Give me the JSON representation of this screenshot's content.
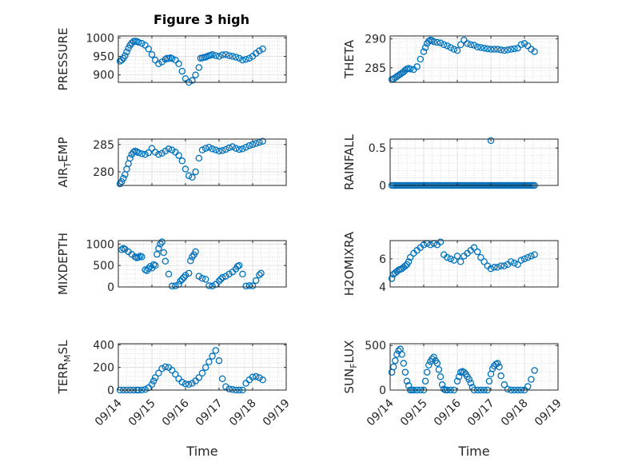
{
  "figure_title": "Figure 3 high",
  "colors": {
    "marker": "#0072BD",
    "axis": "#262626",
    "grid": "#c8c8c8"
  },
  "chart_data": [
    {
      "type": "scatter",
      "ylabel": "PRESSURE",
      "title": "Figure 3 high",
      "xlabel": "",
      "xlim": [
        "09/14",
        "09/19"
      ],
      "ylim": [
        880,
        1005
      ],
      "yticks": [
        900,
        950,
        1000
      ],
      "xticks": [
        "09/14",
        "09/15",
        "09/16",
        "09/17",
        "09/18",
        "09/19"
      ],
      "show_xticklabels": false,
      "grid": "on",
      "series": [
        {
          "x": [
            0.05,
            0.1,
            0.15,
            0.2,
            0.25,
            0.3,
            0.35,
            0.4,
            0.45,
            0.5,
            0.55,
            0.6,
            0.7,
            0.8,
            0.9,
            1.0,
            1.1,
            1.2,
            1.3,
            1.4,
            1.45,
            1.5,
            1.55,
            1.6,
            1.7,
            1.8,
            1.9,
            2.0,
            2.1,
            2.2,
            2.3,
            2.4,
            2.45,
            2.5,
            2.55,
            2.6,
            2.65,
            2.7,
            2.75,
            2.8,
            2.9,
            3.0,
            3.1,
            3.2,
            3.3,
            3.4,
            3.5,
            3.6,
            3.7,
            3.8,
            3.9,
            4.0,
            4.1,
            4.2,
            4.3
          ],
          "y": [
            937,
            940,
            945,
            952,
            962,
            972,
            980,
            986,
            990,
            991,
            990,
            988,
            985,
            980,
            970,
            955,
            940,
            930,
            935,
            942,
            945,
            944,
            946,
            944,
            940,
            930,
            910,
            890,
            880,
            885,
            900,
            920,
            945,
            946,
            947,
            948,
            950,
            952,
            953,
            955,
            952,
            950,
            954,
            955,
            952,
            950,
            948,
            945,
            940,
            942,
            945,
            950,
            958,
            965,
            970
          ]
        }
      ]
    },
    {
      "type": "scatter",
      "ylabel": "THETA",
      "xlabel": "",
      "xlim": [
        "09/14",
        "09/19"
      ],
      "ylim": [
        282.5,
        290.5
      ],
      "yticks": [
        285,
        290
      ],
      "xticks": [
        "09/14",
        "09/15",
        "09/16",
        "09/17",
        "09/18",
        "09/19"
      ],
      "show_xticklabels": false,
      "grid": "on",
      "series": [
        {
          "x": [
            0.05,
            0.1,
            0.15,
            0.2,
            0.25,
            0.3,
            0.35,
            0.4,
            0.45,
            0.5,
            0.55,
            0.6,
            0.7,
            0.8,
            0.9,
            1.0,
            1.05,
            1.1,
            1.15,
            1.2,
            1.25,
            1.3,
            1.4,
            1.5,
            1.6,
            1.7,
            1.8,
            1.9,
            2.0,
            2.1,
            2.2,
            2.3,
            2.4,
            2.5,
            2.6,
            2.7,
            2.8,
            2.9,
            3.0,
            3.1,
            3.2,
            3.3,
            3.4,
            3.5,
            3.6,
            3.7,
            3.8,
            3.9,
            4.0,
            4.1,
            4.2,
            4.3
          ],
          "y": [
            283,
            283.1,
            283.3,
            283.5,
            283.7,
            283.9,
            284.1,
            284.3,
            284.6,
            284.8,
            284.9,
            284.8,
            284.7,
            285.2,
            286.5,
            287.8,
            288.5,
            289.2,
            289.6,
            289.8,
            289.7,
            289.5,
            289.4,
            289.3,
            289.0,
            288.8,
            288.5,
            288.2,
            288.0,
            289.0,
            289.8,
            289.2,
            289.0,
            288.9,
            288.6,
            288.5,
            288.4,
            288.3,
            288.2,
            288.2,
            288.2,
            288.1,
            288.0,
            288.1,
            288.2,
            288.3,
            288.4,
            289.0,
            289.2,
            288.8,
            288.2,
            287.8
          ]
        }
      ]
    },
    {
      "type": "scatter",
      "ylabel": "AIR_TEMP",
      "xlabel": "",
      "xlim": [
        "09/14",
        "09/19"
      ],
      "ylim": [
        277.5,
        286
      ],
      "yticks": [
        280,
        285
      ],
      "xticks": [
        "09/14",
        "09/15",
        "09/16",
        "09/17",
        "09/18",
        "09/19"
      ],
      "show_xticklabels": false,
      "grid": "on",
      "series": [
        {
          "x": [
            0.05,
            0.1,
            0.15,
            0.2,
            0.25,
            0.3,
            0.35,
            0.4,
            0.45,
            0.5,
            0.55,
            0.6,
            0.7,
            0.8,
            0.9,
            1.0,
            1.1,
            1.2,
            1.3,
            1.4,
            1.5,
            1.6,
            1.7,
            1.8,
            1.9,
            2.0,
            2.1,
            2.2,
            2.3,
            2.4,
            2.5,
            2.6,
            2.7,
            2.8,
            2.9,
            3.0,
            3.1,
            3.2,
            3.3,
            3.4,
            3.5,
            3.6,
            3.7,
            3.8,
            3.9,
            4.0,
            4.1,
            4.2,
            4.3
          ],
          "y": [
            277.8,
            278.2,
            278.8,
            279.5,
            280.5,
            281.5,
            282.5,
            283.2,
            283.6,
            283.8,
            283.7,
            283.5,
            283.3,
            283.2,
            283.5,
            284.3,
            283.6,
            283.2,
            283.4,
            283.8,
            284.2,
            284.0,
            283.6,
            283.0,
            282.0,
            280.5,
            279.3,
            279.0,
            280.0,
            282.5,
            284.0,
            284.3,
            284.5,
            284.2,
            284.0,
            283.8,
            283.9,
            284.1,
            284.4,
            284.6,
            284.3,
            284.1,
            284.2,
            284.5,
            284.8,
            285.0,
            285.2,
            285.4,
            285.6
          ]
        }
      ]
    },
    {
      "type": "scatter",
      "ylabel": "RAINFALL",
      "xlabel": "",
      "xlim": [
        "09/14",
        "09/19"
      ],
      "ylim": [
        0,
        0.62
      ],
      "yticks": [
        0,
        0.5
      ],
      "xticks": [
        "09/14",
        "09/15",
        "09/16",
        "09/17",
        "09/18",
        "09/19"
      ],
      "show_xticklabels": false,
      "grid": "on",
      "series": [
        {
          "x_range": [
            0.05,
            4.3
          ],
          "constant": 0,
          "points": 90,
          "outliers": [
            {
              "x": 3.0,
              "y": 0.6
            }
          ]
        }
      ]
    },
    {
      "type": "scatter",
      "ylabel": "MIXDEPTH",
      "xlabel": "",
      "xlim": [
        "09/14",
        "09/19"
      ],
      "ylim": [
        0,
        1080
      ],
      "yticks": [
        0,
        500,
        1000
      ],
      "xticks": [
        "09/14",
        "09/15",
        "09/16",
        "09/17",
        "09/18",
        "09/19"
      ],
      "show_xticklabels": false,
      "grid": "on",
      "series": [
        {
          "x": [
            0.1,
            0.15,
            0.2,
            0.3,
            0.4,
            0.5,
            0.55,
            0.6,
            0.65,
            0.7,
            0.8,
            0.85,
            0.9,
            0.95,
            1.0,
            1.05,
            1.1,
            1.15,
            1.2,
            1.25,
            1.3,
            1.35,
            1.4,
            1.5,
            1.6,
            1.7,
            1.8,
            1.85,
            1.9,
            1.95,
            2.0,
            2.1,
            2.15,
            2.2,
            2.25,
            2.3,
            2.4,
            2.5,
            2.6,
            2.7,
            2.8,
            2.9,
            3.0,
            3.05,
            3.1,
            3.2,
            3.3,
            3.4,
            3.5,
            3.55,
            3.6,
            3.7,
            3.8,
            3.9,
            4.0,
            4.1,
            4.2,
            4.25
          ],
          "y": [
            870,
            900,
            880,
            820,
            760,
            700,
            680,
            690,
            720,
            700,
            400,
            380,
            430,
            480,
            440,
            520,
            500,
            760,
            900,
            1000,
            1050,
            800,
            600,
            300,
            20,
            25,
            60,
            140,
            180,
            220,
            270,
            320,
            610,
            700,
            750,
            820,
            250,
            200,
            180,
            30,
            20,
            60,
            140,
            180,
            220,
            250,
            300,
            350,
            420,
            480,
            500,
            300,
            20,
            30,
            25,
            150,
            280,
            320
          ]
        }
      ]
    },
    {
      "type": "scatter",
      "ylabel": "H2OMIXRA",
      "xlabel": "",
      "xlim": [
        "09/14",
        "09/19"
      ],
      "ylim": [
        4,
        7.3
      ],
      "yticks": [
        4,
        6
      ],
      "xticks": [
        "09/14",
        "09/15",
        "09/16",
        "09/17",
        "09/18",
        "09/19"
      ],
      "show_xticklabels": false,
      "grid": "on",
      "series": [
        {
          "x": [
            0.05,
            0.1,
            0.15,
            0.2,
            0.25,
            0.3,
            0.35,
            0.4,
            0.45,
            0.5,
            0.55,
            0.6,
            0.7,
            0.8,
            0.9,
            1.0,
            1.1,
            1.2,
            1.3,
            1.4,
            1.5,
            1.6,
            1.7,
            1.8,
            1.9,
            2.0,
            2.1,
            2.2,
            2.3,
            2.4,
            2.5,
            2.6,
            2.7,
            2.8,
            2.9,
            3.0,
            3.1,
            3.2,
            3.3,
            3.4,
            3.5,
            3.6,
            3.7,
            3.8,
            3.9,
            4.0,
            4.1,
            4.2,
            4.3
          ],
          "y": [
            4.6,
            4.9,
            5.0,
            5.1,
            5.2,
            5.25,
            5.3,
            5.4,
            5.5,
            5.6,
            5.8,
            6.1,
            6.4,
            6.6,
            6.8,
            7.0,
            7.1,
            7.0,
            7.1,
            7.0,
            7.2,
            6.3,
            6.1,
            6.0,
            5.9,
            6.2,
            5.8,
            6.2,
            6.4,
            6.6,
            6.8,
            6.5,
            6.1,
            5.8,
            5.5,
            5.3,
            5.4,
            5.4,
            5.5,
            5.5,
            5.6,
            5.8,
            5.7,
            5.6,
            5.9,
            6.0,
            6.1,
            6.2,
            6.3
          ]
        }
      ]
    },
    {
      "type": "scatter",
      "ylabel": "TERR_MSL",
      "xlabel": "Time",
      "xlim": [
        "09/14",
        "09/19"
      ],
      "ylim": [
        0,
        410
      ],
      "yticks": [
        0,
        200,
        400
      ],
      "xticks": [
        "09/14",
        "09/15",
        "09/16",
        "09/17",
        "09/18",
        "09/19"
      ],
      "show_xticklabels": true,
      "grid": "on",
      "series": [
        {
          "x": [
            0.05,
            0.15,
            0.25,
            0.35,
            0.45,
            0.55,
            0.6,
            0.7,
            0.8,
            0.9,
            1.0,
            1.05,
            1.1,
            1.2,
            1.3,
            1.4,
            1.5,
            1.6,
            1.7,
            1.8,
            1.9,
            2.0,
            2.1,
            2.2,
            2.3,
            2.4,
            2.5,
            2.6,
            2.7,
            2.8,
            2.9,
            3.0,
            3.1,
            3.2,
            3.3,
            3.4,
            3.5,
            3.6,
            3.7,
            3.8,
            3.9,
            4.0,
            4.1,
            4.2,
            4.3
          ],
          "y": [
            0,
            0,
            0,
            0,
            0,
            0,
            0,
            0,
            5,
            20,
            50,
            80,
            110,
            150,
            190,
            205,
            200,
            175,
            140,
            100,
            70,
            55,
            50,
            60,
            80,
            110,
            150,
            200,
            250,
            300,
            350,
            260,
            100,
            30,
            10,
            5,
            0,
            0,
            0,
            60,
            90,
            115,
            120,
            110,
            90
          ]
        }
      ]
    },
    {
      "type": "scatter",
      "ylabel": "SUN_FLUX",
      "xlabel": "Time",
      "xlim": [
        "09/14",
        "09/19"
      ],
      "ylim": [
        0,
        520
      ],
      "yticks": [
        0,
        500
      ],
      "xticks": [
        "09/14",
        "09/15",
        "09/16",
        "09/17",
        "09/18",
        "09/19"
      ],
      "show_xticklabels": true,
      "grid": "on",
      "series": [
        {
          "x": [
            0.05,
            0.1,
            0.15,
            0.2,
            0.25,
            0.3,
            0.35,
            0.4,
            0.45,
            0.5,
            0.55,
            0.6,
            0.65,
            0.7,
            0.8,
            0.9,
            1.0,
            1.05,
            1.1,
            1.15,
            1.2,
            1.25,
            1.3,
            1.35,
            1.4,
            1.45,
            1.5,
            1.55,
            1.6,
            1.65,
            1.7,
            1.8,
            1.9,
            2.0,
            2.05,
            2.1,
            2.15,
            2.2,
            2.25,
            2.3,
            2.35,
            2.4,
            2.45,
            2.5,
            2.6,
            2.7,
            2.8,
            2.9,
            2.95,
            3.0,
            3.05,
            3.1,
            3.15,
            3.2,
            3.25,
            3.3,
            3.4,
            3.5,
            3.6,
            3.7,
            3.8,
            3.9,
            4.0,
            4.1,
            4.2,
            4.3
          ],
          "y": [
            200,
            260,
            330,
            400,
            440,
            460,
            400,
            300,
            200,
            100,
            50,
            0,
            0,
            0,
            0,
            0,
            0,
            100,
            200,
            280,
            320,
            350,
            370,
            330,
            300,
            230,
            150,
            60,
            10,
            0,
            0,
            0,
            0,
            100,
            150,
            200,
            210,
            200,
            180,
            150,
            120,
            80,
            30,
            0,
            0,
            0,
            0,
            0,
            100,
            180,
            240,
            270,
            290,
            300,
            260,
            160,
            60,
            10,
            0,
            0,
            0,
            0,
            0,
            40,
            120,
            220
          ]
        }
      ]
    }
  ]
}
